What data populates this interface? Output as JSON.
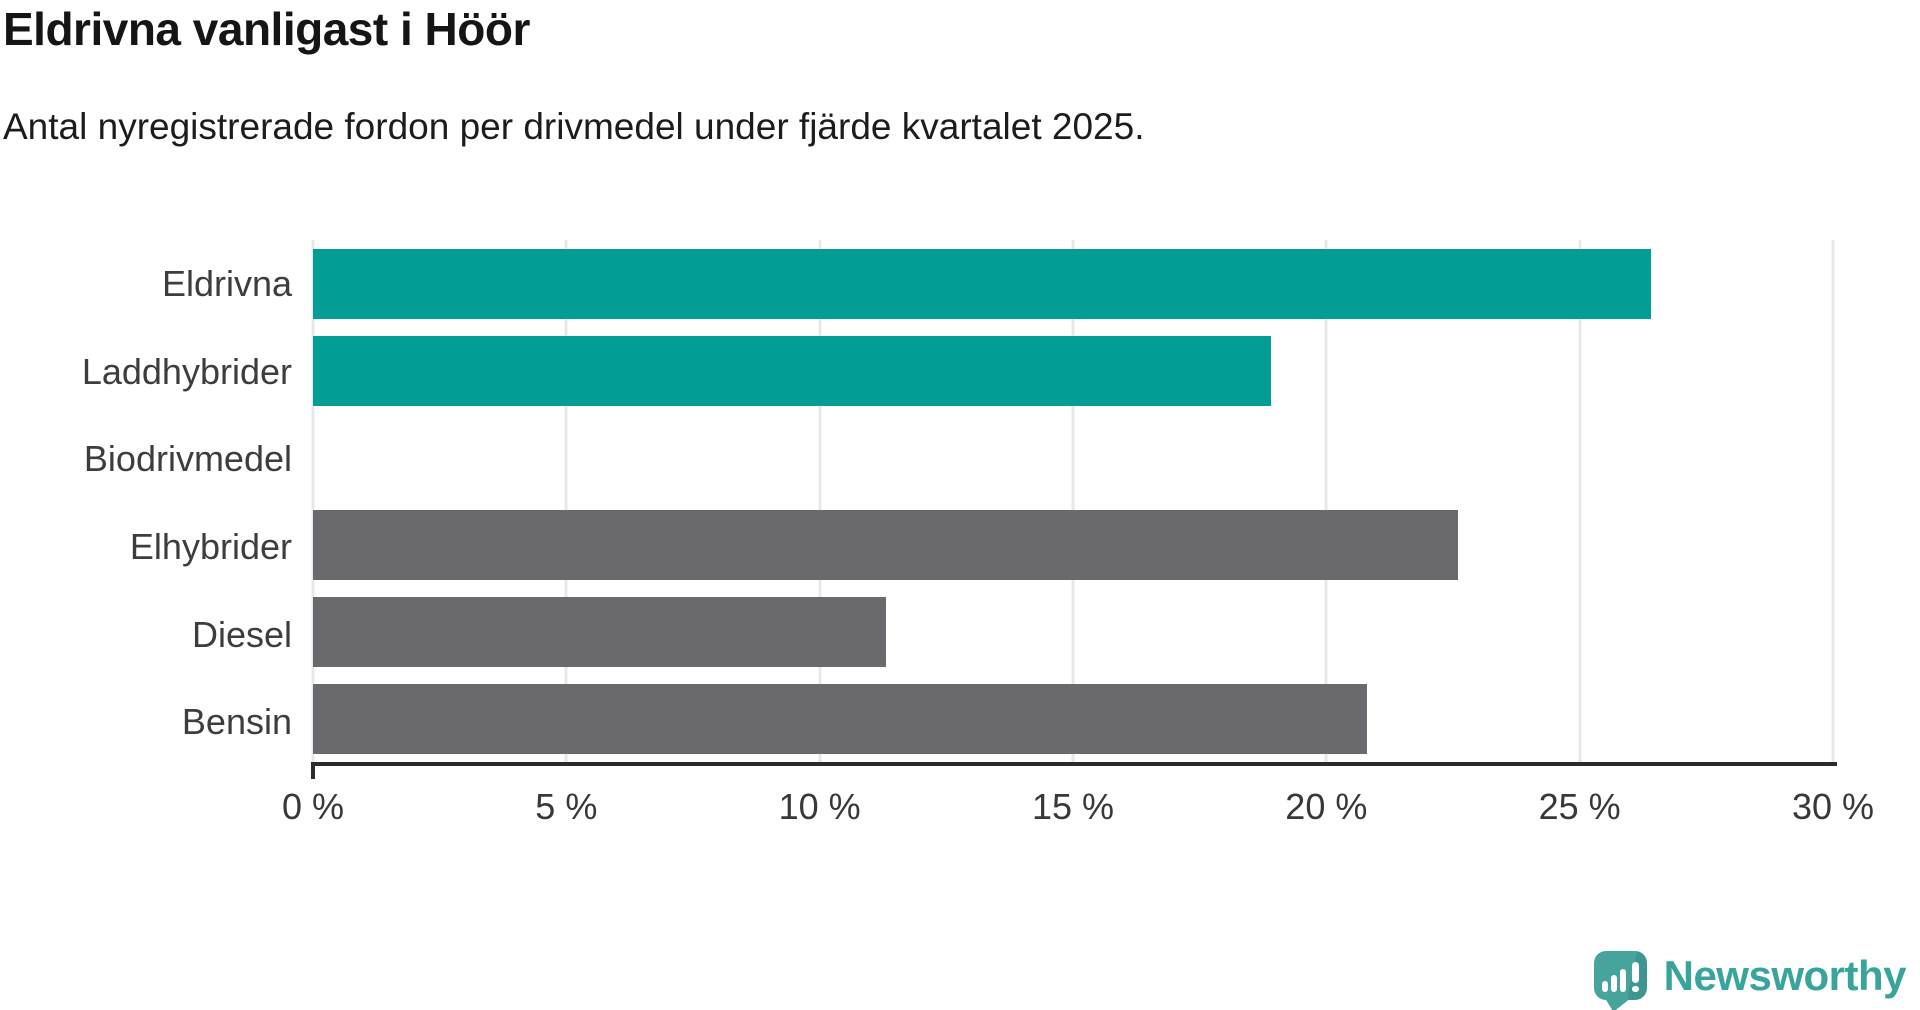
{
  "chart_data": {
    "type": "bar",
    "orientation": "horizontal",
    "title": "Eldrivna vanligast i Höör",
    "subtitle": "Antal nyregistrerade fordon per drivmedel under fjärde kvartalet 2025.",
    "categories": [
      "Eldrivna",
      "Laddhybrider",
      "Biodrivmedel",
      "Elhybrider",
      "Diesel",
      "Bensin"
    ],
    "values": [
      26.4,
      18.9,
      0,
      22.6,
      11.3,
      20.8
    ],
    "unit": "%",
    "bar_colors": [
      "#029e96",
      "#029e96",
      "#029e96",
      "#6a6a6e",
      "#6a6a6e",
      "#6a6a6e"
    ],
    "xlim": [
      0,
      30
    ],
    "x_ticks": [
      0,
      5,
      10,
      15,
      20,
      25,
      30
    ],
    "x_tick_labels": [
      "0 %",
      "5 %",
      "10 %",
      "15 %",
      "20 %",
      "25 %",
      "30 %"
    ],
    "grid": "vertical-gridlines",
    "legend": "none"
  },
  "colors": {
    "highlight_bar": "#029e96",
    "default_bar": "#6a6a6e",
    "gridline": "#e8e8e8",
    "axis": "#2b2b2b",
    "brand_teal": "#38a49b"
  },
  "branding": {
    "logo_text": "Newsworthy"
  }
}
